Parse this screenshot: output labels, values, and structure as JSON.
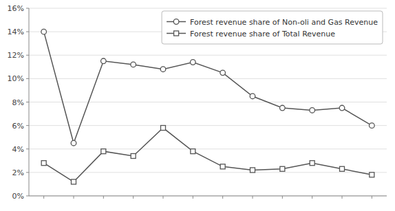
{
  "chart_data": {
    "type": "line",
    "categories": [
      null,
      null,
      null,
      null,
      null,
      null,
      null,
      null,
      null,
      null,
      null,
      null
    ],
    "series": [
      {
        "name": "Forest revenue share of Non-oli and Gas Revenue",
        "color": "#555555",
        "marker": "circle",
        "values": [
          14.0,
          4.5,
          11.5,
          11.2,
          10.8,
          11.4,
          10.5,
          8.5,
          7.5,
          7.3,
          7.5,
          6.0
        ]
      },
      {
        "name": "Forest revenue share of Total Revenue",
        "color": "#555555",
        "marker": "square",
        "values": [
          2.8,
          1.2,
          3.8,
          3.4,
          5.8,
          3.8,
          2.5,
          2.2,
          2.3,
          2.8,
          2.3,
          1.8
        ]
      }
    ],
    "ylim": [
      0,
      16
    ],
    "yticks": [
      {
        "value": 0,
        "label": "0%"
      },
      {
        "value": 2,
        "label": "2%"
      },
      {
        "value": 4,
        "label": "4%"
      },
      {
        "value": 6,
        "label": "6%"
      },
      {
        "value": 8,
        "label": "8%"
      },
      {
        "value": 10,
        "label": "10%"
      },
      {
        "value": 12,
        "label": "12%"
      },
      {
        "value": 14,
        "label": "14%"
      },
      {
        "value": 16,
        "label": "16%"
      }
    ],
    "grid": true,
    "legend": "upper right",
    "tick_labels": "y"
  }
}
